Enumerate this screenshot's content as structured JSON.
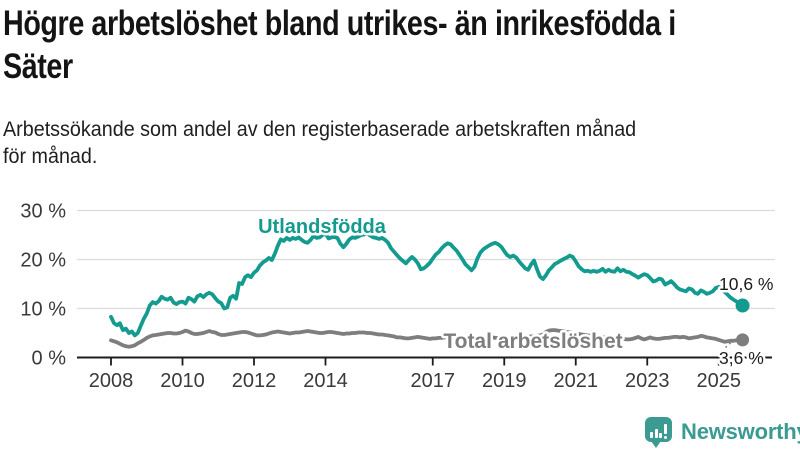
{
  "header": {
    "title_lines": [
      "Högre arbetslöshet bland utrikes- än inrikesfödda i",
      "Säter"
    ],
    "subtitle_lines": [
      "Arbetssökande som andel av den registerbaserade arbetskraften månad",
      "för månad."
    ]
  },
  "chart_data": {
    "type": "line",
    "title": "Högre arbetslöshet bland utrikes- än inrikesfödda i Säter",
    "subtitle": "Arbetssökande som andel av den registerbaserade arbetskraften månad för månad.",
    "grid": "horizontal-only",
    "legend_position": "inline-labels",
    "x_axis": {
      "ticks": [
        2008,
        2010,
        2012,
        2014,
        2017,
        2019,
        2021,
        2023,
        2025
      ],
      "range": [
        2007.9,
        2026.5
      ]
    },
    "y_axis": {
      "ylim": [
        0,
        30
      ],
      "ticks": [
        {
          "value": 0,
          "label": "0 %"
        },
        {
          "value": 10,
          "label": "10 %"
        },
        {
          "value": 20,
          "label": "20 %"
        },
        {
          "value": 30,
          "label": "30 %"
        }
      ]
    },
    "series": [
      {
        "name": "Utlandsfödda",
        "color": "#149b90",
        "end_label": "10,6 %",
        "end_value": 10.6,
        "start_year": 2008,
        "step_months": 1,
        "values": [
          8.3,
          7.0,
          6.6,
          7.0,
          5.6,
          5.9,
          5.0,
          5.3,
          4.5,
          5.0,
          6.5,
          7.9,
          9.0,
          10.6,
          11.3,
          11.0,
          11.5,
          12.4,
          12.0,
          11.8,
          12.2,
          11.2,
          10.9,
          11.3,
          11.4,
          11.0,
          12.2,
          11.9,
          11.4,
          12.5,
          12.8,
          12.3,
          12.9,
          13.2,
          12.9,
          12.1,
          11.4,
          11.1,
          10.0,
          10.2,
          12.2,
          12.6,
          12.0,
          15.2,
          15.0,
          16.4,
          16.8,
          16.4,
          17.3,
          17.8,
          18.8,
          19.4,
          19.8,
          20.3,
          19.9,
          21.2,
          22.8,
          24.1,
          23.8,
          24.4,
          24.0,
          24.4,
          24.2,
          24.5,
          24.0,
          23.6,
          23.4,
          24.0,
          24.8,
          24.4,
          24.5,
          25.0,
          25.3,
          24.3,
          24.5,
          24.6,
          24.4,
          23.2,
          22.5,
          23.2,
          24.1,
          24.5,
          24.4,
          24.7,
          25.0,
          25.1,
          25.3,
          24.9,
          24.5,
          24.4,
          24.2,
          24.4,
          24.0,
          23.4,
          22.3,
          21.6,
          20.9,
          20.2,
          19.7,
          19.2,
          19.9,
          20.5,
          20.0,
          19.2,
          18.0,
          18.2,
          18.7,
          19.3,
          20.2,
          21.0,
          21.5,
          22.3,
          22.9,
          23.3,
          23.1,
          22.4,
          21.8,
          20.9,
          20.0,
          19.0,
          18.4,
          17.8,
          18.5,
          20.2,
          21.4,
          22.1,
          22.5,
          22.9,
          23.2,
          23.4,
          23.1,
          22.6,
          21.7,
          20.9,
          20.5,
          20.8,
          20.4,
          19.6,
          18.9,
          18.2,
          17.9,
          19.0,
          19.8,
          18.0,
          16.5,
          16.0,
          16.8,
          17.8,
          18.4,
          19.1,
          19.4,
          19.8,
          20.1,
          20.4,
          20.8,
          20.5,
          19.6,
          18.6,
          18.0,
          17.6,
          17.7,
          17.5,
          17.7,
          17.5,
          17.7,
          18.1,
          17.5,
          17.9,
          17.6,
          17.5,
          18.2,
          17.6,
          17.9,
          17.5,
          17.4,
          17.0,
          16.7,
          16.3,
          16.7,
          17.0,
          16.8,
          16.2,
          15.5,
          15.7,
          16.1,
          15.9,
          14.9,
          15.2,
          15.6,
          15.0,
          14.3,
          13.9,
          13.7,
          13.5,
          14.1,
          13.9,
          13.2,
          13.0,
          13.7,
          13.4,
          13.0,
          13.2,
          13.5,
          14.2,
          14.4,
          14.0,
          13.4,
          12.8,
          12.2,
          11.8,
          11.4,
          11.0,
          10.6
        ]
      },
      {
        "name": "Total arbetslöshet",
        "color": "#7e7e7e",
        "end_label": "3,6 %",
        "end_value": 3.6,
        "start_year": 2008,
        "step_months": 1,
        "values": [
          3.5,
          3.3,
          3.1,
          2.8,
          2.5,
          2.3,
          2.2,
          2.3,
          2.5,
          2.9,
          3.2,
          3.6,
          4.0,
          4.3,
          4.5,
          4.6,
          4.7,
          4.8,
          4.9,
          5.0,
          5.0,
          4.9,
          4.9,
          5.0,
          5.2,
          5.5,
          5.3,
          5.0,
          4.8,
          4.8,
          4.9,
          5.0,
          5.2,
          5.4,
          5.2,
          5.1,
          4.8,
          4.6,
          4.6,
          4.7,
          4.8,
          4.9,
          5.0,
          5.1,
          5.2,
          5.2,
          5.1,
          4.9,
          4.7,
          4.5,
          4.5,
          4.6,
          4.7,
          4.9,
          5.1,
          5.2,
          5.3,
          5.2,
          5.1,
          5.0,
          4.9,
          5.0,
          5.1,
          5.1,
          5.2,
          5.3,
          5.4,
          5.3,
          5.2,
          5.1,
          5.0,
          5.0,
          5.1,
          5.2,
          5.2,
          5.1,
          5.0,
          4.9,
          4.8,
          4.9,
          4.9,
          5.0,
          5.0,
          5.1,
          5.1,
          5.1,
          5.0,
          5.0,
          4.9,
          4.8,
          4.7,
          4.7,
          4.6,
          4.5,
          4.4,
          4.3,
          4.1,
          4.1,
          4.0,
          3.9,
          3.9,
          4.0,
          4.1,
          4.2,
          4.1,
          4.0,
          3.9,
          3.8,
          3.9,
          3.9,
          4.0,
          4.0,
          4.1,
          4.1,
          4.2,
          4.2,
          4.1,
          4.1,
          4.0,
          4.0,
          3.9,
          3.8,
          3.8,
          3.9,
          3.9,
          4.0,
          4.0,
          4.1,
          4.1,
          4.0,
          4.0,
          3.9,
          3.9,
          3.9,
          3.9,
          4.0,
          4.0,
          4.1,
          4.1,
          4.2,
          4.2,
          4.3,
          4.3,
          4.4,
          4.5,
          4.7,
          5.2,
          5.5,
          5.6,
          5.6,
          5.5,
          5.4,
          5.3,
          5.2,
          5.1,
          5.0,
          4.9,
          4.8,
          4.7,
          4.6,
          4.5,
          4.4,
          4.3,
          4.2,
          4.2,
          4.1,
          4.1,
          4.0,
          4.0,
          3.9,
          3.9,
          3.8,
          3.8,
          3.7,
          3.7,
          3.8,
          4.0,
          4.2,
          3.9,
          3.7,
          3.9,
          4.1,
          3.9,
          3.8,
          3.8,
          3.9,
          4.0,
          4.0,
          4.1,
          4.2,
          4.2,
          4.1,
          4.2,
          4.1,
          3.9,
          4.0,
          4.1,
          4.2,
          4.4,
          4.3,
          4.1,
          4.0,
          3.9,
          3.8,
          3.6,
          3.4,
          3.2,
          3.3,
          3.4,
          3.4,
          3.5,
          3.5,
          3.6
        ]
      }
    ],
    "colors": {
      "axis": "#1c1c1c",
      "gridline": "#dcdcdc",
      "tick_label": "#3a3a3a"
    }
  },
  "footer": {
    "brand": "Newsworthy",
    "brand_color": "#3b9a92"
  }
}
